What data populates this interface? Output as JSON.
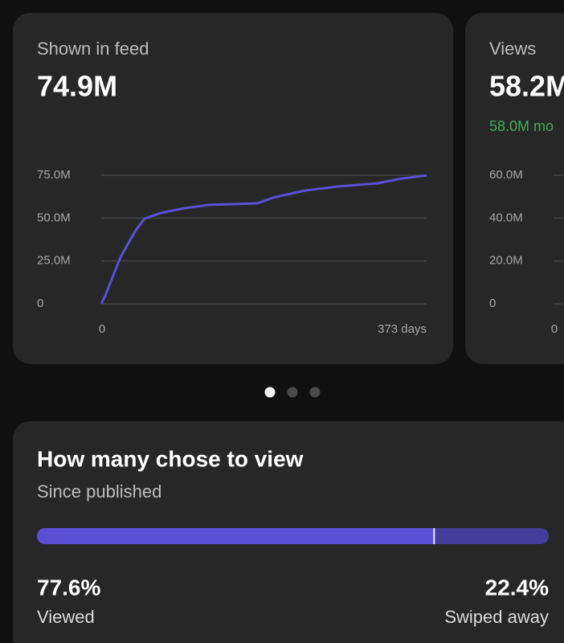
{
  "cards": [
    {
      "title": "Shown in feed",
      "value": "74.9M",
      "chart_data": {
        "type": "line",
        "x": [
          0,
          4.6,
          12.9,
          22.1,
          31.3,
          40.5,
          49.7,
          68.2,
          95.8,
          123.4,
          178.7,
          197.1,
          234,
          270.8,
          316.8,
          344.5,
          373
        ],
        "values": [
          0,
          4.7,
          15.5,
          27.2,
          35.6,
          43.6,
          49.7,
          53.0,
          55.8,
          57.7,
          58.6,
          61.9,
          66.1,
          68.4,
          70.3,
          73.1,
          74.9
        ],
        "color": "#5b4fd6",
        "xlim": [
          0,
          373
        ],
        "ylim": [
          0,
          75
        ],
        "xticks": [
          0,
          {
            "value": 373,
            "label": "373 days"
          }
        ],
        "yticks": [
          0,
          {
            "value": 25,
            "label": "25.0M"
          },
          {
            "value": 50,
            "label": "50.0M"
          },
          {
            "value": 75,
            "label": "75.0M"
          }
        ],
        "grid": true
      }
    },
    {
      "title": "Views",
      "value": "58.2M",
      "subtitle": "58.0M mo",
      "chart_data": {
        "type": "line",
        "ylim": [
          0,
          60
        ],
        "xticks": [
          0
        ],
        "yticks": [
          0,
          {
            "value": 20,
            "label": "20.0M"
          },
          {
            "value": 40,
            "label": "40.0M"
          },
          {
            "value": 60,
            "label": "60.0M"
          }
        ],
        "grid": true
      }
    }
  ],
  "breakdown": {
    "title": "How many chose to view",
    "subtitle": "Since published",
    "chart_data": {
      "type": "stacked-bar",
      "categories": [
        "Viewed",
        "Swiped away"
      ],
      "values": [
        77.6,
        22.4
      ],
      "value_labels": [
        "77.6%",
        "22.4%"
      ],
      "colors": [
        "#5b4fd6",
        "#463c9a"
      ]
    }
  }
}
